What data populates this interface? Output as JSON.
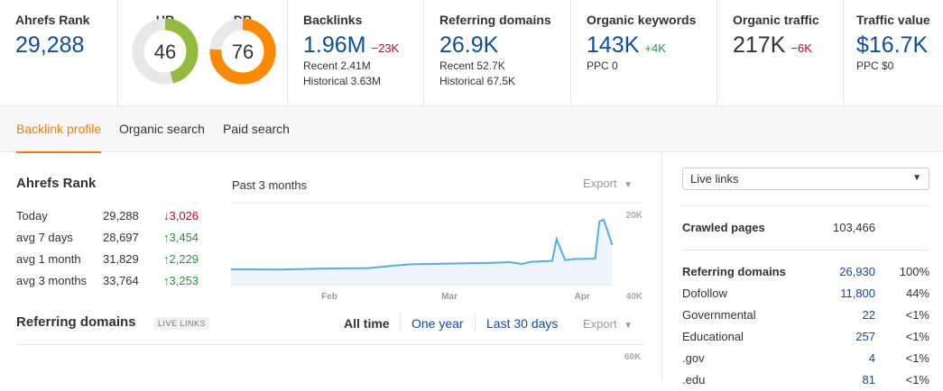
{
  "metrics": {
    "ahrefs_rank": {
      "label": "Ahrefs Rank",
      "value": "29,288"
    },
    "ur": {
      "label": "UR",
      "value": "46",
      "fraction": 0.46,
      "color": "#8fbc3a"
    },
    "dr": {
      "label": "DR",
      "value": "76",
      "fraction": 0.76,
      "color": "#ff8a00"
    },
    "backlinks": {
      "label": "Backlinks",
      "value": "1.96M",
      "delta": "−23K",
      "recent": "Recent 2.41M",
      "historical": "Historical 3.63M"
    },
    "referring_domains": {
      "label": "Referring domains",
      "value": "26.9K",
      "recent": "Recent 52.7K",
      "historical": "Historical 67.5K"
    },
    "organic_keywords": {
      "label": "Organic keywords",
      "value": "143K",
      "delta": "+4K",
      "ppc": "PPC 0"
    },
    "organic_traffic": {
      "label": "Organic traffic",
      "value": "217K",
      "delta": "−6K"
    },
    "traffic_value": {
      "label": "Traffic value",
      "value": "$16.7K",
      "ppc": "PPC $0"
    }
  },
  "tabs": [
    {
      "label": "Backlink profile",
      "active": true
    },
    {
      "label": "Organic search"
    },
    {
      "label": "Paid search"
    }
  ],
  "rank_section": {
    "title": "Ahrefs Rank",
    "period": "Past 3 months",
    "export": "Export",
    "rows": [
      {
        "label": "Today",
        "value": "29,288",
        "change": "3,026",
        "dir": "down"
      },
      {
        "label": "avg 7 days",
        "value": "28,697",
        "change": "3,454",
        "dir": "up"
      },
      {
        "label": "avg 1 month",
        "value": "31,829",
        "change": "2,229",
        "dir": "up"
      },
      {
        "label": "avg 3 months",
        "value": "33,764",
        "change": "3,253",
        "dir": "up"
      }
    ]
  },
  "chart_data": {
    "type": "area",
    "inverted_y": true,
    "ylim": [
      20000,
      40000
    ],
    "y_ticks": [
      "20K",
      "40K"
    ],
    "x_ticks": [
      "Feb",
      "Mar",
      "Apr"
    ],
    "x": [
      "Jan 9",
      "Jan 20",
      "Feb 1",
      "Feb 10",
      "Feb 17",
      "Feb 20",
      "Mar 1",
      "Mar 10",
      "Mar 15",
      "Mar 18",
      "Mar 20",
      "Mar 25",
      "Mar 26",
      "Mar 28",
      "Mar 30",
      "Apr 4",
      "Apr 5",
      "Apr 6",
      "Apr 8"
    ],
    "values": [
      35600,
      35700,
      35400,
      35300,
      34500,
      34200,
      34000,
      33800,
      33600,
      34100,
      33500,
      33200,
      27000,
      33000,
      32700,
      32600,
      22000,
      21500,
      28700
    ],
    "color": "#4fb0ea"
  },
  "refdomains_section": {
    "title": "Referring domains",
    "badge": "LIVE LINKS",
    "ranges": [
      "All time",
      "One year",
      "Last 30 days"
    ],
    "export": "Export",
    "y_tick": "60K"
  },
  "sidebar": {
    "select": "Live links",
    "crawled": {
      "label": "Crawled pages",
      "value": "103,466"
    },
    "rows": [
      {
        "label": "Referring domains",
        "value": "26,930",
        "pct": "100%",
        "bold": true
      },
      {
        "label": "Dofollow",
        "value": "11,800",
        "pct": "44%"
      },
      {
        "label": "Governmental",
        "value": "22",
        "pct": "<1%"
      },
      {
        "label": "Educational",
        "value": "257",
        "pct": "<1%"
      },
      {
        "label": ".gov",
        "value": "4",
        "pct": "<1%"
      },
      {
        "label": ".edu",
        "value": "81",
        "pct": "<1%"
      }
    ]
  }
}
